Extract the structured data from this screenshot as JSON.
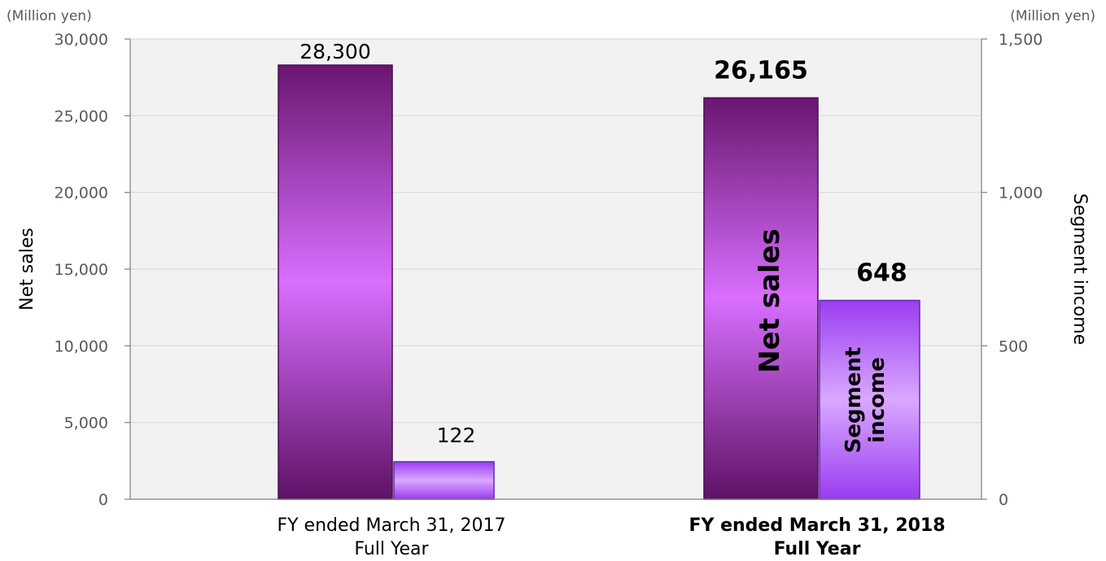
{
  "chart_data": {
    "type": "bar",
    "categories": [
      {
        "line1": "FY ended March 31, 2017",
        "line2": "Full Year",
        "bold": false
      },
      {
        "line1": "FY ended March 31, 2018",
        "line2": "Full Year",
        "bold": true
      }
    ],
    "series": [
      {
        "name": "Net sales",
        "axis": "left",
        "values": [
          28300,
          26165
        ],
        "data_labels": [
          "28,300",
          "26,165"
        ],
        "color": "#c05cf0"
      },
      {
        "name": "Segment income",
        "axis": "right",
        "values": [
          122,
          648
        ],
        "data_labels": [
          "122",
          "648"
        ],
        "color": "#b26cf7"
      }
    ],
    "left_axis": {
      "title": "Net sales",
      "unit": "(Million yen)",
      "range": [
        0,
        30000
      ],
      "ticks": [
        0,
        5000,
        10000,
        15000,
        20000,
        25000,
        30000
      ],
      "tick_labels": [
        "0",
        "5,000",
        "10,000",
        "15,000",
        "20,000",
        "25,000",
        "30,000"
      ]
    },
    "right_axis": {
      "title": "Segment income",
      "unit": "(Million yen)",
      "range": [
        0,
        1500
      ],
      "ticks": [
        0,
        500,
        1000,
        1500
      ],
      "tick_labels": [
        "0",
        "500",
        "1,000",
        "1,500"
      ]
    },
    "in_bar_labels": {
      "net_sales": "Net sales",
      "segment_line1": "Segment",
      "segment_line2": "income"
    },
    "grid": true,
    "plot_background": "#f2f2f2"
  }
}
